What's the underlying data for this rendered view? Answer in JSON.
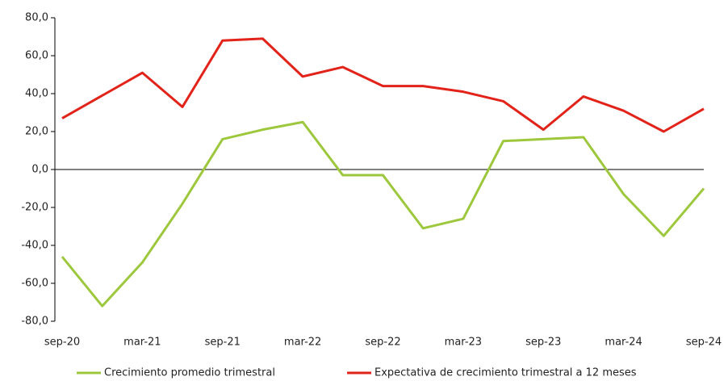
{
  "chart_data": {
    "type": "line",
    "categories": [
      "sep-20",
      null,
      "mar-21",
      null,
      "sep-21",
      null,
      "mar-22",
      null,
      "sep-22",
      null,
      "mar-23",
      null,
      "sep-23",
      null,
      "mar-24",
      null,
      "sep-24"
    ],
    "series": [
      {
        "name": "Crecimiento promedio trimestral",
        "color": "#9dc83d",
        "values": [
          -46,
          -72,
          -49,
          -18,
          16,
          21,
          25,
          -3,
          -3,
          -31,
          -26,
          15,
          16,
          17,
          -13,
          -35,
          -10
        ]
      },
      {
        "name": "Expectativa de crecimiento trimestral a 12 meses",
        "color": "#e2231a",
        "values": [
          27,
          39,
          51,
          33,
          68,
          69,
          49,
          54,
          44,
          44,
          41,
          36,
          21,
          38.5,
          31,
          20,
          32
        ]
      }
    ],
    "ylim": [
      -80,
      80
    ],
    "yticks": [
      {
        "value": -80,
        "label": "-80,0"
      },
      {
        "value": -60,
        "label": "-60,0"
      },
      {
        "value": -40,
        "label": "-40,0"
      },
      {
        "value": -20,
        "label": "-20,0"
      },
      {
        "value": 0,
        "label": "0,0"
      },
      {
        "value": 20,
        "label": "20,0"
      },
      {
        "value": 40,
        "label": "40,0"
      },
      {
        "value": 60,
        "label": "60,0"
      },
      {
        "value": 80,
        "label": "80,0"
      }
    ],
    "grid": false,
    "legend": "bottom"
  }
}
